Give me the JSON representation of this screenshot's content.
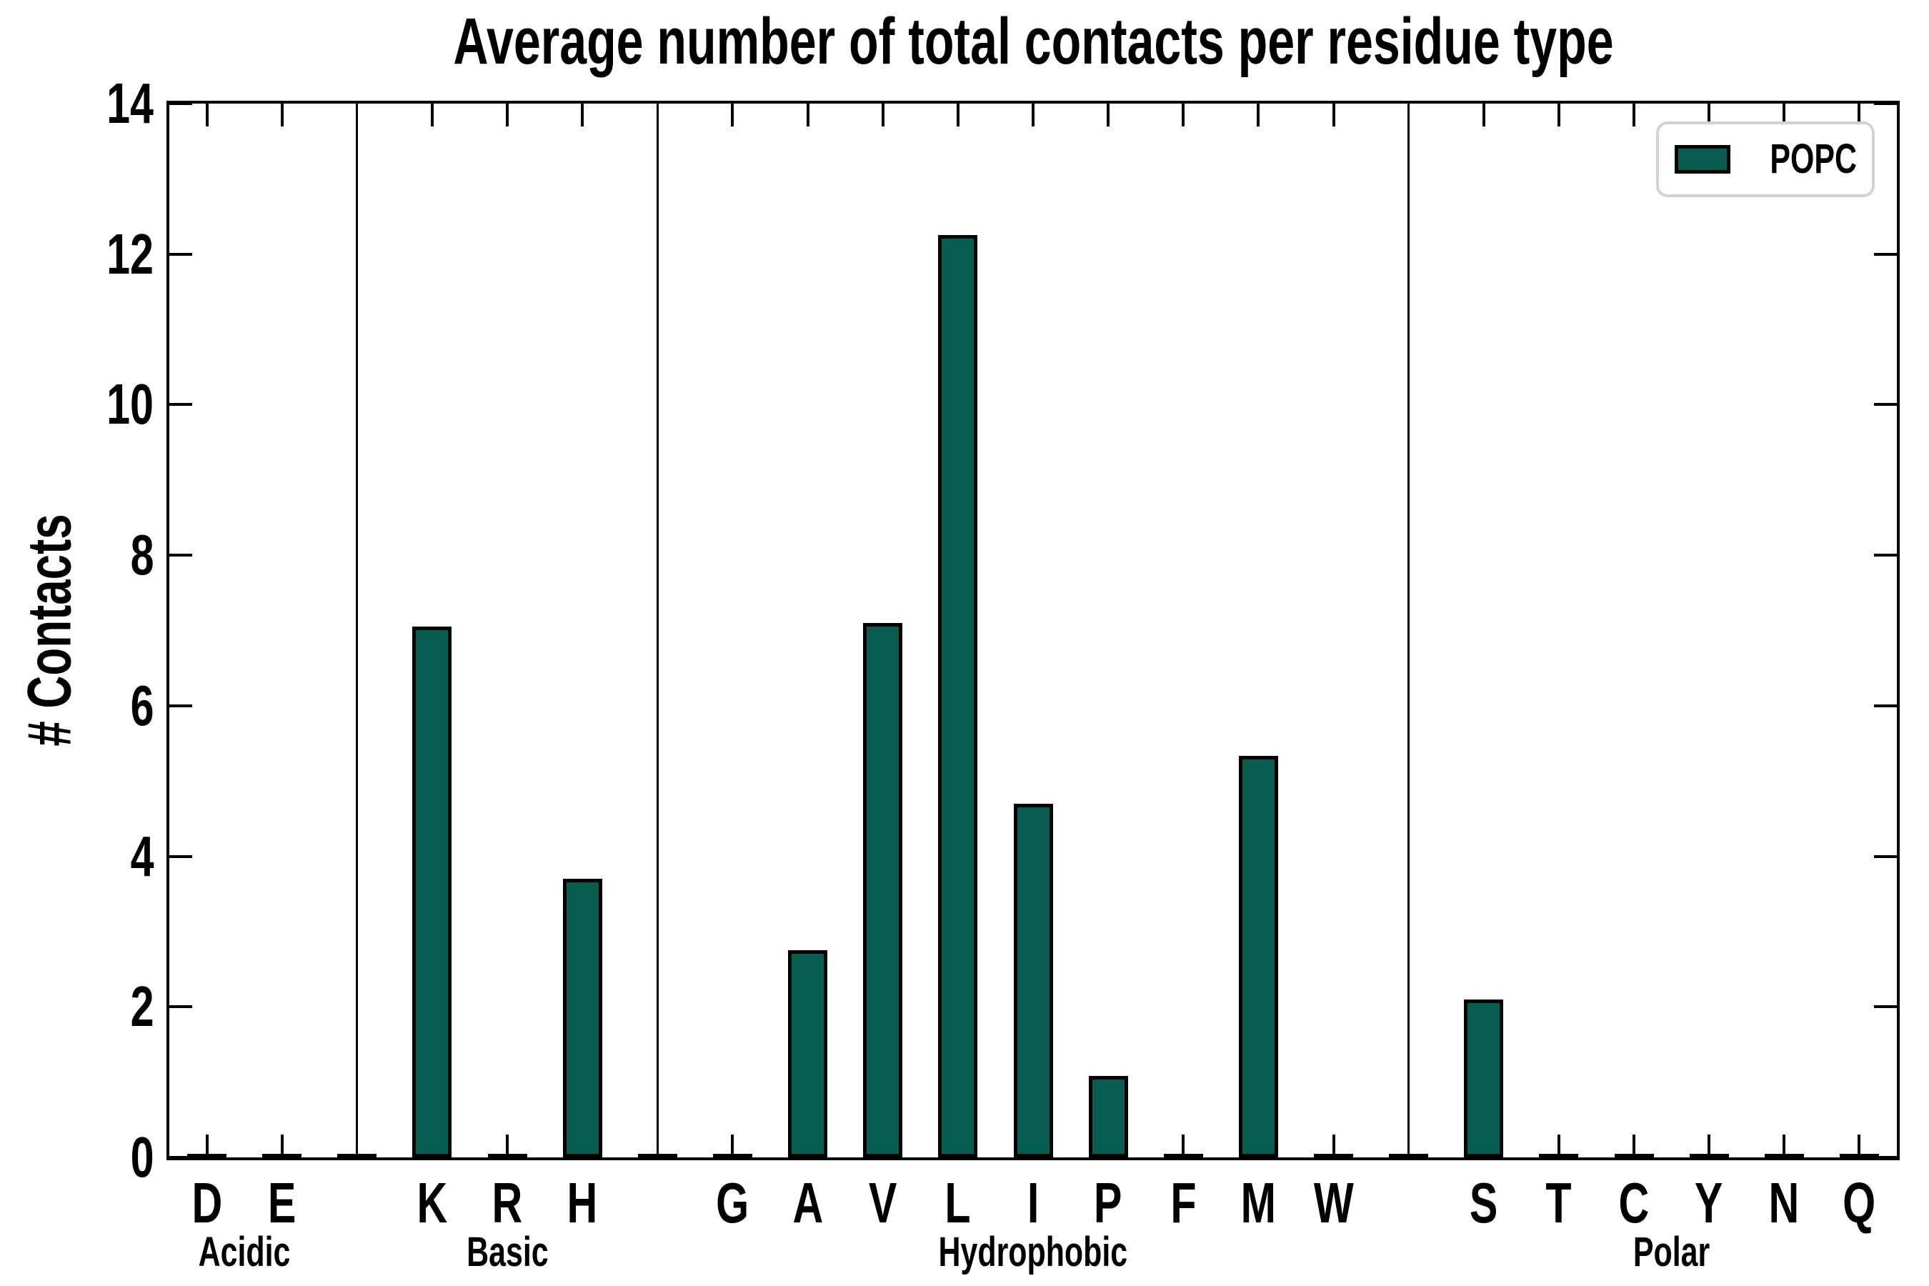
{
  "figure_title": "Average number of total contacts per residue type",
  "axes": {
    "ylabel": "# Contacts",
    "ylim": [
      0,
      14
    ],
    "yticks": [
      0,
      2,
      4,
      6,
      8,
      10,
      12,
      14
    ],
    "tick_direction": "in",
    "grid": false
  },
  "legend": {
    "position": "upper-right",
    "label": "POPC"
  },
  "colors": {
    "bar_fill": "#075d50",
    "bar_edge": "#000000",
    "axis": "#000000",
    "legend_border": "#d2d2d2",
    "background": "#ffffff",
    "text": "#000000"
  },
  "chart_data": {
    "type": "bar",
    "title": "Average number of total contacts per residue type",
    "xlabel": "",
    "ylabel": "# Contacts",
    "ylim": [
      0,
      14
    ],
    "yticks": [
      0,
      2,
      4,
      6,
      8,
      10,
      12,
      14
    ],
    "grid": false,
    "legend": {
      "position": "upper-right",
      "entries": [
        {
          "label": "POPC",
          "color": "#075d50"
        }
      ]
    },
    "bar_color": "#075d50",
    "bar_edge_color": "#000000",
    "groups": [
      {
        "label": "Acidic",
        "categories": [
          "D",
          "E"
        ],
        "values": [
          0,
          0
        ]
      },
      {
        "label": "Basic",
        "categories": [
          "K",
          "R",
          "H"
        ],
        "values": [
          7.05,
          0,
          3.7
        ]
      },
      {
        "label": "Hydrophobic",
        "categories": [
          "G",
          "A",
          "V",
          "L",
          "I",
          "P",
          "F",
          "M",
          "W"
        ],
        "values": [
          0,
          2.75,
          7.1,
          12.25,
          4.7,
          1.08,
          0,
          5.33,
          0
        ]
      },
      {
        "label": "Polar",
        "categories": [
          "S",
          "T",
          "C",
          "Y",
          "N",
          "Q"
        ],
        "values": [
          2.1,
          0,
          0,
          0,
          0,
          0
        ]
      }
    ]
  }
}
